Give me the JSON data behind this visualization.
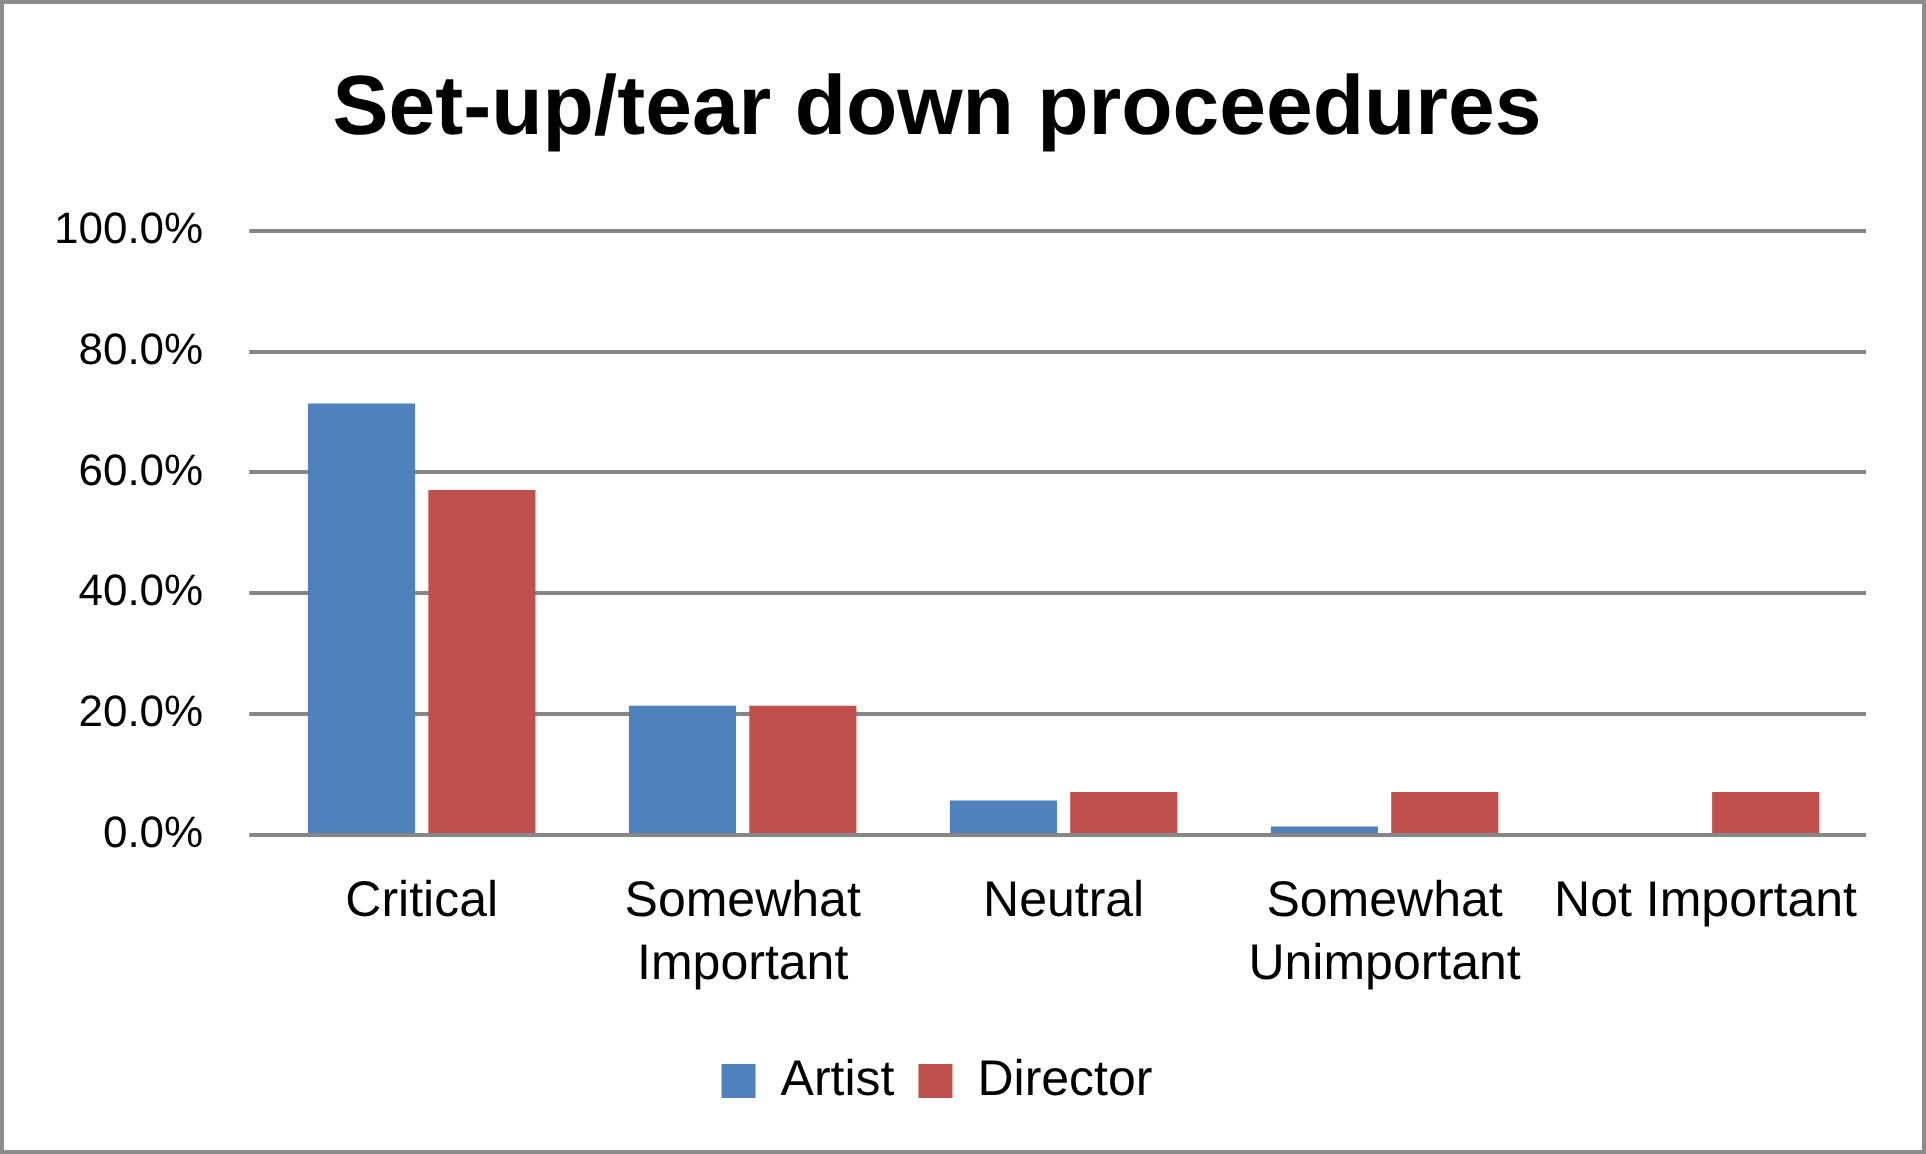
{
  "chart_data": {
    "type": "bar",
    "title": "Set-up/tear down proceedures",
    "categories": [
      "Critical",
      "Somewhat Important",
      "Neutral",
      "Somewhat Unimportant",
      "Not Important"
    ],
    "series": [
      {
        "name": "Artist",
        "color": "#4f81bd",
        "values": [
          71.4,
          21.4,
          5.7,
          1.4,
          0
        ]
      },
      {
        "name": "Director",
        "color": "#c0504d",
        "values": [
          57.1,
          21.4,
          7.1,
          7.1,
          7.1
        ]
      }
    ],
    "ylim": [
      0,
      100
    ],
    "yticks": [
      {
        "value": 0,
        "label": "0.0%"
      },
      {
        "value": 20,
        "label": "20.0%"
      },
      {
        "value": 40,
        "label": "40.0%"
      },
      {
        "value": 60,
        "label": "60.0%"
      },
      {
        "value": 80,
        "label": "80.0%"
      },
      {
        "value": 100,
        "label": "100.0%"
      }
    ],
    "grid": "y",
    "legend": "bottom"
  }
}
